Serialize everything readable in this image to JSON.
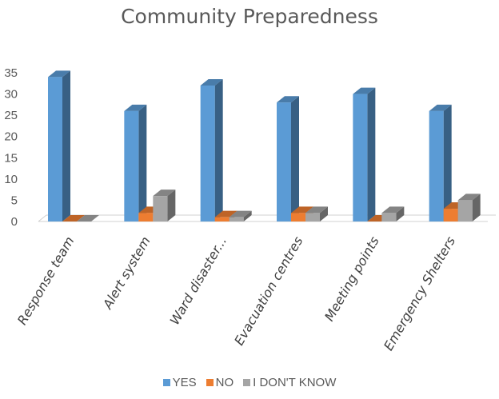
{
  "chart_data": {
    "type": "bar",
    "title": "Community Preparedness",
    "categories": [
      "Response team",
      "Alert system",
      "Ward disaster...",
      "Evacuation centres",
      "Meeting points",
      "Emergency Shelters"
    ],
    "series": [
      {
        "name": "YES",
        "values": [
          34,
          26,
          32,
          28,
          30,
          26
        ],
        "color": "#5B9BD5"
      },
      {
        "name": "NO",
        "values": [
          0,
          2,
          1,
          2,
          0,
          3
        ],
        "color": "#ED7D31"
      },
      {
        "name": "I DON'T KNOW",
        "values": [
          0,
          6,
          1,
          2,
          2,
          5
        ],
        "color": "#A5A5A5"
      }
    ],
    "yticks": [
      "0",
      "5",
      "10",
      "15",
      "20",
      "25",
      "30",
      "35"
    ],
    "ylim": [
      0,
      35
    ],
    "grid": false,
    "legend_position": "bottom",
    "style": "3d-clustered-column"
  }
}
